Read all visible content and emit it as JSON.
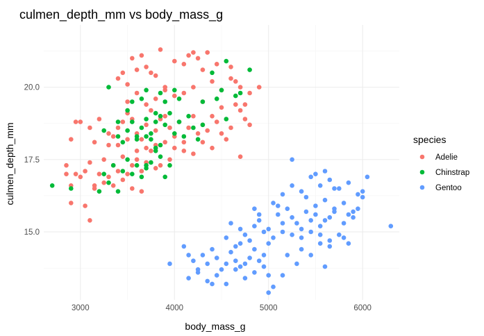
{
  "chart_data": {
    "type": "scatter",
    "title": "culmen_depth_mm vs body_mass_g",
    "xlabel": "body_mass_g",
    "ylabel": "culmen_depth_mm",
    "xlim": [
      2610,
      6390
    ],
    "ylim": [
      12.65,
      22.15
    ],
    "x_ticks": [
      3000,
      4000,
      5000,
      6000
    ],
    "x_tick_labels": [
      "3000",
      "4000",
      "5000",
      "6000"
    ],
    "y_ticks": [
      15.0,
      17.5,
      20.0
    ],
    "y_tick_labels": [
      "15.0",
      "17.5",
      "20.0"
    ],
    "grid": true,
    "legend": {
      "title": "species",
      "placement": "right"
    },
    "series": [
      {
        "name": "Adelie",
        "color": "#F8766D",
        "points": [
          [
            2850,
            17.0
          ],
          [
            2900,
            16.6
          ],
          [
            2950,
            17.0
          ],
          [
            3000,
            16.9
          ],
          [
            3050,
            17.1
          ],
          [
            3100,
            17.4
          ],
          [
            3150,
            16.6
          ],
          [
            3200,
            17.0
          ],
          [
            3250,
            17.5
          ],
          [
            3300,
            16.9
          ],
          [
            3350,
            17.3
          ],
          [
            3400,
            17.1
          ],
          [
            3450,
            17.6
          ],
          [
            3500,
            17.0
          ],
          [
            3550,
            17.3
          ],
          [
            3600,
            17.5
          ],
          [
            3650,
            17.1
          ],
          [
            3700,
            17.4
          ],
          [
            3750,
            17.8
          ],
          [
            3800,
            17.2
          ],
          [
            3150,
            16.5
          ],
          [
            3250,
            16.7
          ],
          [
            3350,
            16.6
          ],
          [
            3450,
            16.8
          ],
          [
            3550,
            16.5
          ],
          [
            3650,
            16.4
          ],
          [
            3850,
            17.3
          ],
          [
            3950,
            17.5
          ],
          [
            2900,
            16.0
          ],
          [
            3050,
            15.9
          ],
          [
            3100,
            15.4
          ],
          [
            2850,
            17.3
          ],
          [
            2950,
            18.8
          ],
          [
            3000,
            18.8
          ],
          [
            2900,
            18.2
          ],
          [
            3100,
            18.6
          ],
          [
            3150,
            18.1
          ],
          [
            3200,
            18.9
          ],
          [
            3300,
            18.0
          ],
          [
            3350,
            18.3
          ],
          [
            3400,
            18.6
          ],
          [
            3450,
            18.8
          ],
          [
            3500,
            19.1
          ],
          [
            3550,
            18.9
          ],
          [
            3600,
            18.4
          ],
          [
            3650,
            18.2
          ],
          [
            3700,
            18.7
          ],
          [
            3750,
            19.2
          ],
          [
            3800,
            18.5
          ],
          [
            3850,
            18.9
          ],
          [
            3900,
            19.0
          ],
          [
            3950,
            18.6
          ],
          [
            4000,
            18.3
          ],
          [
            4050,
            18.8
          ],
          [
            4100,
            18.1
          ],
          [
            4150,
            18.6
          ],
          [
            4200,
            19.0
          ],
          [
            4250,
            18.4
          ],
          [
            4300,
            18.7
          ],
          [
            4350,
            18.5
          ],
          [
            4400,
            19.0
          ],
          [
            4450,
            18.8
          ],
          [
            4500,
            19.3
          ],
          [
            4550,
            18.2
          ],
          [
            4600,
            18.6
          ],
          [
            4650,
            19.4
          ],
          [
            4700,
            19.2
          ],
          [
            4750,
            18.9
          ],
          [
            4800,
            18.7
          ],
          [
            3300,
            18.4
          ],
          [
            3400,
            18.0
          ],
          [
            3500,
            18.2
          ],
          [
            3600,
            17.8
          ],
          [
            3700,
            17.9
          ],
          [
            3800,
            18.0
          ],
          [
            3900,
            18.1
          ],
          [
            4000,
            17.9
          ],
          [
            4100,
            17.8
          ],
          [
            4200,
            17.7
          ],
          [
            4300,
            18.1
          ],
          [
            4400,
            17.9
          ],
          [
            4500,
            18.4
          ],
          [
            4700,
            17.6
          ],
          [
            3500,
            19.5
          ],
          [
            3600,
            19.8
          ],
          [
            3700,
            19.4
          ],
          [
            3800,
            19.6
          ],
          [
            3900,
            19.9
          ],
          [
            4000,
            19.7
          ],
          [
            4100,
            19.8
          ],
          [
            4200,
            20.0
          ],
          [
            4300,
            19.5
          ],
          [
            4400,
            20.2
          ],
          [
            4500,
            19.9
          ],
          [
            4600,
            20.3
          ],
          [
            4700,
            20.0
          ],
          [
            4750,
            19.4
          ],
          [
            3400,
            20.3
          ],
          [
            3500,
            20.1
          ],
          [
            3600,
            20.6
          ],
          [
            3700,
            20.7
          ],
          [
            3800,
            20.4
          ],
          [
            3900,
            20.0
          ],
          [
            4100,
            20.8
          ],
          [
            4300,
            20.6
          ],
          [
            3650,
            21.1
          ],
          [
            3750,
            20.5
          ],
          [
            3850,
            21.3
          ],
          [
            4000,
            20.9
          ],
          [
            4150,
            21.1
          ],
          [
            4200,
            21.2
          ],
          [
            4250,
            21.0
          ],
          [
            4350,
            21.2
          ],
          [
            4450,
            20.8
          ],
          [
            4600,
            20.7
          ],
          [
            3450,
            20.5
          ],
          [
            3550,
            21.0
          ],
          [
            4650,
            20.2
          ],
          [
            4900,
            20.0
          ],
          [
            4800,
            19.8
          ]
        ]
      },
      {
        "name": "Chinstrap",
        "color": "#00BA38",
        "points": [
          [
            2700,
            16.6
          ],
          [
            2900,
            16.5
          ],
          [
            3200,
            16.4
          ],
          [
            3250,
            17.0
          ],
          [
            3300,
            16.7
          ],
          [
            3350,
            17.3
          ],
          [
            3400,
            16.4
          ],
          [
            3450,
            17.1
          ],
          [
            3500,
            17.5
          ],
          [
            3550,
            17.0
          ],
          [
            3600,
            17.3
          ],
          [
            3650,
            16.9
          ],
          [
            3700,
            17.2
          ],
          [
            3750,
            17.4
          ],
          [
            3800,
            17.8
          ],
          [
            3850,
            17.6
          ],
          [
            3900,
            16.9
          ],
          [
            3700,
            18.3
          ],
          [
            3750,
            18.2
          ],
          [
            3800,
            17.9
          ],
          [
            3400,
            18.3
          ],
          [
            3450,
            18.1
          ],
          [
            3500,
            18.5
          ],
          [
            3550,
            18.8
          ],
          [
            3600,
            18.3
          ],
          [
            3650,
            18.6
          ],
          [
            3700,
            18.9
          ],
          [
            3750,
            18.4
          ],
          [
            3800,
            18.8
          ],
          [
            3850,
            19.0
          ],
          [
            3900,
            18.7
          ],
          [
            3950,
            19.1
          ],
          [
            4000,
            18.4
          ],
          [
            4050,
            18.8
          ],
          [
            4100,
            18.3
          ],
          [
            4150,
            19.0
          ],
          [
            4200,
            18.6
          ],
          [
            4250,
            18.2
          ],
          [
            4300,
            18.7
          ],
          [
            4450,
            19.6
          ],
          [
            4500,
            19.9
          ],
          [
            4550,
            18.9
          ],
          [
            4650,
            19.7
          ],
          [
            4700,
            19.8
          ],
          [
            3300,
            20.0
          ],
          [
            3500,
            19.2
          ],
          [
            3550,
            19.5
          ],
          [
            3650,
            19.6
          ],
          [
            3700,
            19.9
          ],
          [
            3800,
            19.1
          ],
          [
            3850,
            19.8
          ],
          [
            3900,
            19.5
          ],
          [
            4000,
            19.9
          ],
          [
            4050,
            19.6
          ],
          [
            4300,
            19.5
          ],
          [
            4400,
            20.5
          ],
          [
            4800,
            20.6
          ],
          [
            4550,
            20.9
          ],
          [
            3400,
            18.8
          ],
          [
            3600,
            18.2
          ],
          [
            3700,
            17.3
          ],
          [
            3850,
            18.0
          ],
          [
            3250,
            18.5
          ],
          [
            3950,
            17.3
          ]
        ]
      },
      {
        "name": "Gentoo",
        "color": "#619CFF",
        "points": [
          [
            3950,
            13.9
          ],
          [
            4100,
            14.5
          ],
          [
            4150,
            14.2
          ],
          [
            4200,
            14.0
          ],
          [
            4250,
            13.6
          ],
          [
            4300,
            14.2
          ],
          [
            4350,
            13.9
          ],
          [
            4400,
            14.4
          ],
          [
            4450,
            14.1
          ],
          [
            4500,
            13.7
          ],
          [
            4550,
            13.9
          ],
          [
            4600,
            14.3
          ],
          [
            4650,
            14.0
          ],
          [
            4700,
            13.8
          ],
          [
            4750,
            13.9
          ],
          [
            4800,
            14.1
          ],
          [
            4850,
            14.4
          ],
          [
            4900,
            14.0
          ],
          [
            4950,
            14.2
          ],
          [
            5000,
            14.6
          ],
          [
            4150,
            13.4
          ],
          [
            4250,
            13.7
          ],
          [
            4350,
            13.3
          ],
          [
            4450,
            13.5
          ],
          [
            4550,
            13.2
          ],
          [
            4650,
            13.7
          ],
          [
            4750,
            13.4
          ],
          [
            4850,
            13.6
          ],
          [
            4950,
            13.8
          ],
          [
            4400,
            13.2
          ],
          [
            5000,
            13.5
          ],
          [
            5050,
            13.1
          ],
          [
            5150,
            13.5
          ],
          [
            5000,
            12.9
          ],
          [
            4550,
            14.8
          ],
          [
            4650,
            14.5
          ],
          [
            4750,
            14.9
          ],
          [
            4850,
            15.2
          ],
          [
            4950,
            15.0
          ],
          [
            5050,
            14.8
          ],
          [
            5150,
            15.3
          ],
          [
            5250,
            15.5
          ],
          [
            5350,
            14.8
          ],
          [
            5450,
            15.0
          ],
          [
            5550,
            15.2
          ],
          [
            5650,
            14.7
          ],
          [
            5750,
            14.9
          ],
          [
            5850,
            15.6
          ],
          [
            4700,
            15.1
          ],
          [
            4800,
            14.7
          ],
          [
            4900,
            15.4
          ],
          [
            5000,
            15.1
          ],
          [
            5100,
            15.6
          ],
          [
            5200,
            15.8
          ],
          [
            5300,
            15.3
          ],
          [
            5400,
            15.7
          ],
          [
            5500,
            15.9
          ],
          [
            5600,
            16.1
          ],
          [
            5700,
            15.8
          ],
          [
            5800,
            16.0
          ],
          [
            5900,
            15.7
          ],
          [
            6000,
            16.2
          ],
          [
            5050,
            16.0
          ],
          [
            5150,
            16.3
          ],
          [
            5250,
            16.6
          ],
          [
            5350,
            16.4
          ],
          [
            5450,
            16.9
          ],
          [
            5550,
            16.6
          ],
          [
            5650,
            16.8
          ],
          [
            5750,
            16.5
          ],
          [
            5850,
            16.7
          ],
          [
            5950,
            16.3
          ],
          [
            6050,
            16.9
          ],
          [
            5250,
            17.5
          ],
          [
            5500,
            17.0
          ],
          [
            5600,
            17.1
          ],
          [
            5700,
            16.5
          ],
          [
            5800,
            15.3
          ],
          [
            6300,
            15.2
          ],
          [
            5150,
            15.0
          ],
          [
            5250,
            14.9
          ],
          [
            5350,
            15.1
          ],
          [
            5450,
            15.4
          ],
          [
            5550,
            14.6
          ],
          [
            5650,
            15.5
          ],
          [
            5350,
            14.4
          ],
          [
            5450,
            14.2
          ],
          [
            5550,
            14.9
          ],
          [
            5650,
            14.5
          ],
          [
            5850,
            14.6
          ],
          [
            5600,
            13.8
          ],
          [
            5950,
            15.8
          ],
          [
            4900,
            15.6
          ],
          [
            5100,
            15.9
          ],
          [
            5200,
            14.2
          ],
          [
            5300,
            13.9
          ],
          [
            4600,
            15.3
          ],
          [
            4700,
            14.6
          ],
          [
            4850,
            15.8
          ],
          [
            5400,
            16.2
          ],
          [
            5500,
            15.6
          ],
          [
            5600,
            15.4
          ],
          [
            5700,
            15.7
          ],
          [
            5800,
            14.8
          ],
          [
            5900,
            15.5
          ],
          [
            6000,
            16.4
          ]
        ]
      }
    ]
  }
}
